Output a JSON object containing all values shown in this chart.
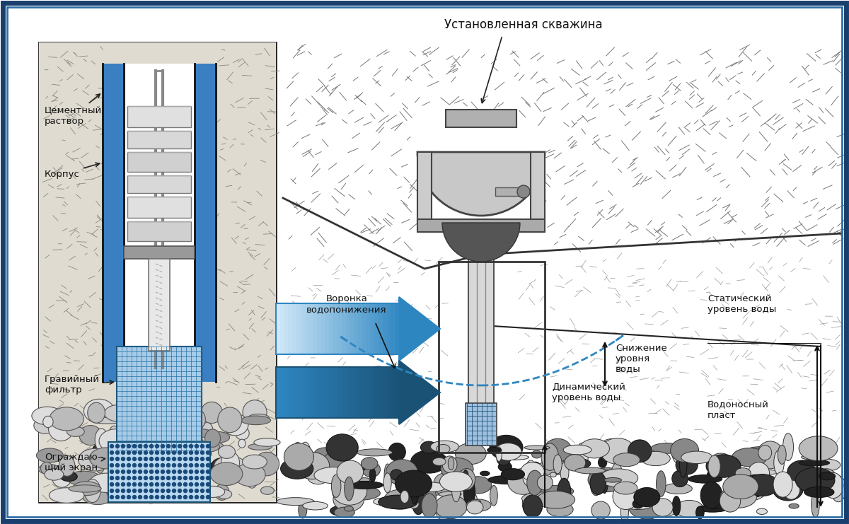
{
  "title_text": "Установленная скважина",
  "bg_color": "#ffffff",
  "border_outer": "#1a3f6f",
  "border_inner": "#2e6ca4",
  "blue_fill": "#3a7fc1",
  "blue_light": "#a8cce8",
  "blue_dark": "#1a5fa8",
  "label_cement": "Цементный\nраствор",
  "label_corpus": "Корпус",
  "label_gravel": "Гравийный\nфильтр",
  "label_screen": "Ограждаю-\nщий экран",
  "label_funnel": "Воронка\nводопонижения",
  "label_decline": "Снижение\nуровня\nводы",
  "label_static": "Статический\nуровень воды",
  "label_dynamic": "Динамический\nуровень воды",
  "label_aquifer": "Водоносный\nпласт",
  "soil_color": "#d8d0c0",
  "soil_light": "#e8e4dc",
  "text_fontsize": 9.5,
  "title_fontsize": 12
}
